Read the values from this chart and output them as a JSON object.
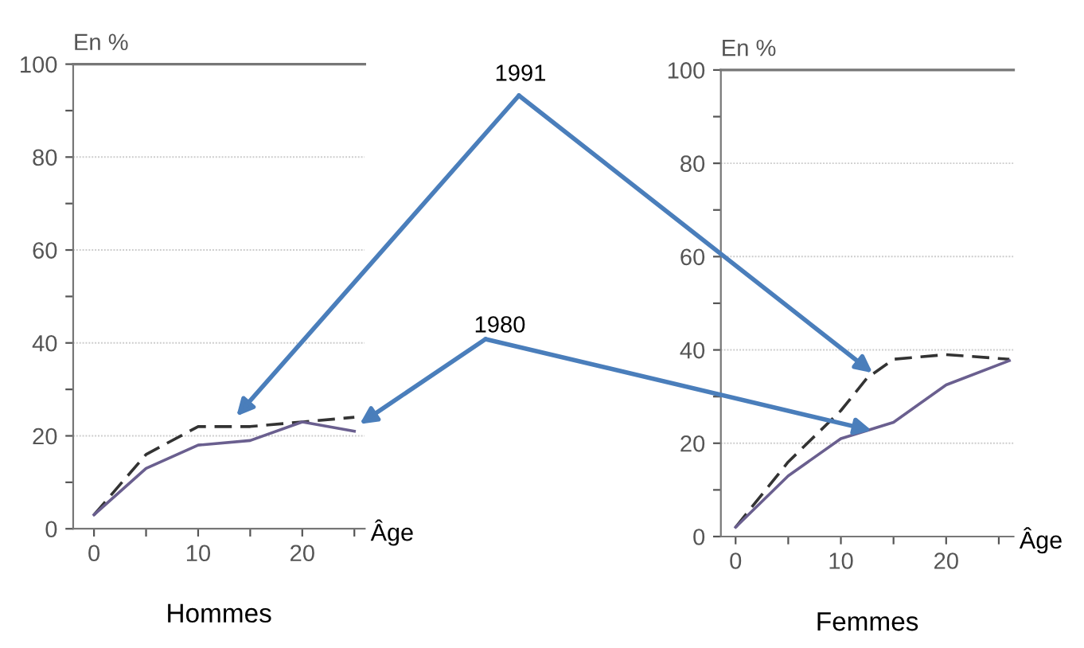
{
  "chart_data": [
    {
      "type": "line",
      "title": "Hommes",
      "xlabel": "Âge",
      "ylabel": "En %",
      "xlim": [
        -2,
        26
      ],
      "xticks": [
        0,
        {
          "value": 5,
          "label": null
        },
        10,
        {
          "value": 15,
          "label": null
        },
        20,
        {
          "value": 25,
          "label": null
        }
      ],
      "ylim": [
        0,
        100
      ],
      "yticks": [
        0,
        {
          "value": 10,
          "label": null
        },
        20,
        {
          "value": 30,
          "label": null
        },
        40,
        {
          "value": 50,
          "label": null
        },
        60,
        {
          "value": 70,
          "label": null
        },
        80,
        {
          "value": 90,
          "label": null
        },
        100
      ],
      "grid": "y",
      "legend": false,
      "annotations": [
        "1991",
        "1980"
      ],
      "series": [
        {
          "color": "#333333",
          "line_style": "dashed",
          "x": [
            0,
            5,
            10,
            15,
            20,
            25
          ],
          "values": [
            3,
            16,
            22,
            22,
            23,
            24
          ]
        },
        {
          "color": "#6a5f8f",
          "line_style": "solid",
          "x": [
            0,
            5,
            10,
            15,
            20,
            25
          ],
          "values": [
            3,
            13,
            18,
            19,
            23,
            21
          ]
        }
      ]
    },
    {
      "type": "line",
      "title": "Femmes",
      "xlabel": "Âge",
      "ylabel": "En %",
      "xlim": [
        -1.4,
        26.4
      ],
      "xticks": [
        0,
        {
          "value": 5,
          "label": null
        },
        10,
        {
          "value": 15,
          "label": null
        },
        20,
        {
          "value": 25,
          "label": null
        }
      ],
      "ylim": [
        0,
        100
      ],
      "yticks": [
        0,
        {
          "value": 10,
          "label": null
        },
        20,
        {
          "value": 30,
          "label": null
        },
        40,
        {
          "value": 50,
          "label": null
        },
        60,
        {
          "value": 70,
          "label": null
        },
        80,
        {
          "value": 90,
          "label": null
        },
        100
      ],
      "grid": "y",
      "legend": false,
      "series": [
        {
          "color": "#333333",
          "line_style": "dashed",
          "x": [
            0,
            5,
            10,
            12.5,
            15,
            20,
            26
          ],
          "values": [
            2,
            16,
            27,
            34,
            38,
            39,
            38
          ]
        },
        {
          "color": "#6a5f8f",
          "line_style": "solid",
          "x": [
            0,
            5,
            10,
            15,
            20,
            26
          ],
          "values": [
            2,
            13,
            21,
            24.5,
            32.5,
            37.7
          ]
        }
      ]
    }
  ]
}
